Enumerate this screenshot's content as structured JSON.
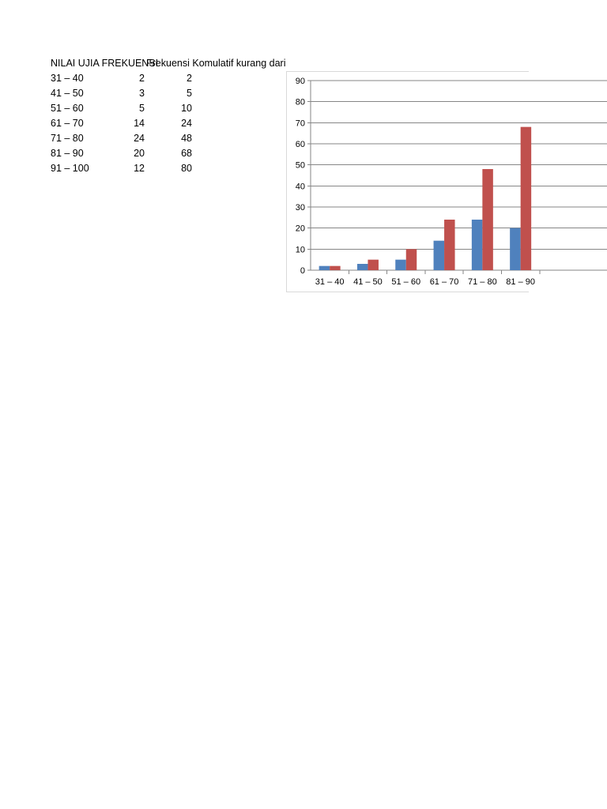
{
  "table": {
    "headers": [
      "NILAI UJIA FREKUENSI",
      "Frekuensi Komulatif kurang dari"
    ],
    "rows": [
      {
        "range": "31 – 40",
        "freq": "2",
        "cum": "2"
      },
      {
        "range": "41 – 50",
        "freq": "3",
        "cum": "5"
      },
      {
        "range": "51 – 60",
        "freq": "5",
        "cum": "10"
      },
      {
        "range": "61 – 70",
        "freq": "14",
        "cum": "24"
      },
      {
        "range": "71 – 80",
        "freq": "24",
        "cum": "48"
      },
      {
        "range": "81 – 90",
        "freq": "20",
        "cum": "68"
      },
      {
        "range": "91 – 100",
        "freq": "12",
        "cum": "80"
      }
    ]
  },
  "chart_data": {
    "type": "bar",
    "categories": [
      "31 – 40",
      "41 – 50",
      "51 – 60",
      "61 – 70",
      "71 – 80",
      "81 – 90"
    ],
    "series": [
      {
        "values": [
          2,
          3,
          5,
          14,
          24,
          20
        ],
        "color": "#4F81BD"
      },
      {
        "values": [
          2,
          5,
          10,
          24,
          48,
          68
        ],
        "color": "#C0504D"
      }
    ],
    "ylim": [
      0,
      90
    ],
    "yticks": [
      0,
      10,
      20,
      30,
      40,
      50,
      60,
      70,
      80,
      90
    ],
    "grid": true,
    "xlabel": "",
    "ylabel": ""
  }
}
